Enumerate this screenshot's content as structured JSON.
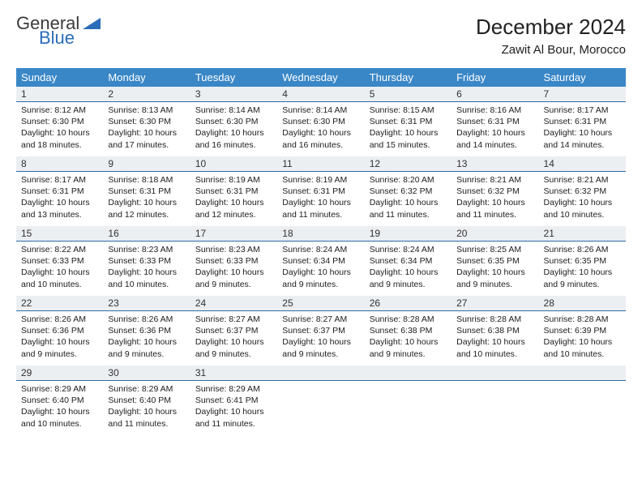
{
  "logo": {
    "line1": "General",
    "line2": "Blue"
  },
  "title": {
    "month": "December 2024",
    "location": "Zawit Al Bour, Morocco"
  },
  "colors": {
    "header_bg": "#3a87c7",
    "header_text": "#ffffff",
    "daynum_bg": "#eceff2",
    "daynum_border": "#2f6aa5",
    "logo_blue": "#2a6db8",
    "text": "#202020",
    "page_bg": "#ffffff"
  },
  "weekdays": [
    "Sunday",
    "Monday",
    "Tuesday",
    "Wednesday",
    "Thursday",
    "Friday",
    "Saturday"
  ],
  "days": [
    {
      "n": "1",
      "sr": "8:12 AM",
      "ss": "6:30 PM",
      "dl": "10 hours and 18 minutes."
    },
    {
      "n": "2",
      "sr": "8:13 AM",
      "ss": "6:30 PM",
      "dl": "10 hours and 17 minutes."
    },
    {
      "n": "3",
      "sr": "8:14 AM",
      "ss": "6:30 PM",
      "dl": "10 hours and 16 minutes."
    },
    {
      "n": "4",
      "sr": "8:14 AM",
      "ss": "6:30 PM",
      "dl": "10 hours and 16 minutes."
    },
    {
      "n": "5",
      "sr": "8:15 AM",
      "ss": "6:31 PM",
      "dl": "10 hours and 15 minutes."
    },
    {
      "n": "6",
      "sr": "8:16 AM",
      "ss": "6:31 PM",
      "dl": "10 hours and 14 minutes."
    },
    {
      "n": "7",
      "sr": "8:17 AM",
      "ss": "6:31 PM",
      "dl": "10 hours and 14 minutes."
    },
    {
      "n": "8",
      "sr": "8:17 AM",
      "ss": "6:31 PM",
      "dl": "10 hours and 13 minutes."
    },
    {
      "n": "9",
      "sr": "8:18 AM",
      "ss": "6:31 PM",
      "dl": "10 hours and 12 minutes."
    },
    {
      "n": "10",
      "sr": "8:19 AM",
      "ss": "6:31 PM",
      "dl": "10 hours and 12 minutes."
    },
    {
      "n": "11",
      "sr": "8:19 AM",
      "ss": "6:31 PM",
      "dl": "10 hours and 11 minutes."
    },
    {
      "n": "12",
      "sr": "8:20 AM",
      "ss": "6:32 PM",
      "dl": "10 hours and 11 minutes."
    },
    {
      "n": "13",
      "sr": "8:21 AM",
      "ss": "6:32 PM",
      "dl": "10 hours and 11 minutes."
    },
    {
      "n": "14",
      "sr": "8:21 AM",
      "ss": "6:32 PM",
      "dl": "10 hours and 10 minutes."
    },
    {
      "n": "15",
      "sr": "8:22 AM",
      "ss": "6:33 PM",
      "dl": "10 hours and 10 minutes."
    },
    {
      "n": "16",
      "sr": "8:23 AM",
      "ss": "6:33 PM",
      "dl": "10 hours and 10 minutes."
    },
    {
      "n": "17",
      "sr": "8:23 AM",
      "ss": "6:33 PM",
      "dl": "10 hours and 9 minutes."
    },
    {
      "n": "18",
      "sr": "8:24 AM",
      "ss": "6:34 PM",
      "dl": "10 hours and 9 minutes."
    },
    {
      "n": "19",
      "sr": "8:24 AM",
      "ss": "6:34 PM",
      "dl": "10 hours and 9 minutes."
    },
    {
      "n": "20",
      "sr": "8:25 AM",
      "ss": "6:35 PM",
      "dl": "10 hours and 9 minutes."
    },
    {
      "n": "21",
      "sr": "8:26 AM",
      "ss": "6:35 PM",
      "dl": "10 hours and 9 minutes."
    },
    {
      "n": "22",
      "sr": "8:26 AM",
      "ss": "6:36 PM",
      "dl": "10 hours and 9 minutes."
    },
    {
      "n": "23",
      "sr": "8:26 AM",
      "ss": "6:36 PM",
      "dl": "10 hours and 9 minutes."
    },
    {
      "n": "24",
      "sr": "8:27 AM",
      "ss": "6:37 PM",
      "dl": "10 hours and 9 minutes."
    },
    {
      "n": "25",
      "sr": "8:27 AM",
      "ss": "6:37 PM",
      "dl": "10 hours and 9 minutes."
    },
    {
      "n": "26",
      "sr": "8:28 AM",
      "ss": "6:38 PM",
      "dl": "10 hours and 9 minutes."
    },
    {
      "n": "27",
      "sr": "8:28 AM",
      "ss": "6:38 PM",
      "dl": "10 hours and 10 minutes."
    },
    {
      "n": "28",
      "sr": "8:28 AM",
      "ss": "6:39 PM",
      "dl": "10 hours and 10 minutes."
    },
    {
      "n": "29",
      "sr": "8:29 AM",
      "ss": "6:40 PM",
      "dl": "10 hours and 10 minutes."
    },
    {
      "n": "30",
      "sr": "8:29 AM",
      "ss": "6:40 PM",
      "dl": "10 hours and 11 minutes."
    },
    {
      "n": "31",
      "sr": "8:29 AM",
      "ss": "6:41 PM",
      "dl": "10 hours and 11 minutes."
    }
  ],
  "labels": {
    "sunrise": "Sunrise:",
    "sunset": "Sunset:",
    "daylight": "Daylight:"
  },
  "layout": {
    "cols": 7,
    "rows": 5,
    "trailing_empty": 4
  }
}
